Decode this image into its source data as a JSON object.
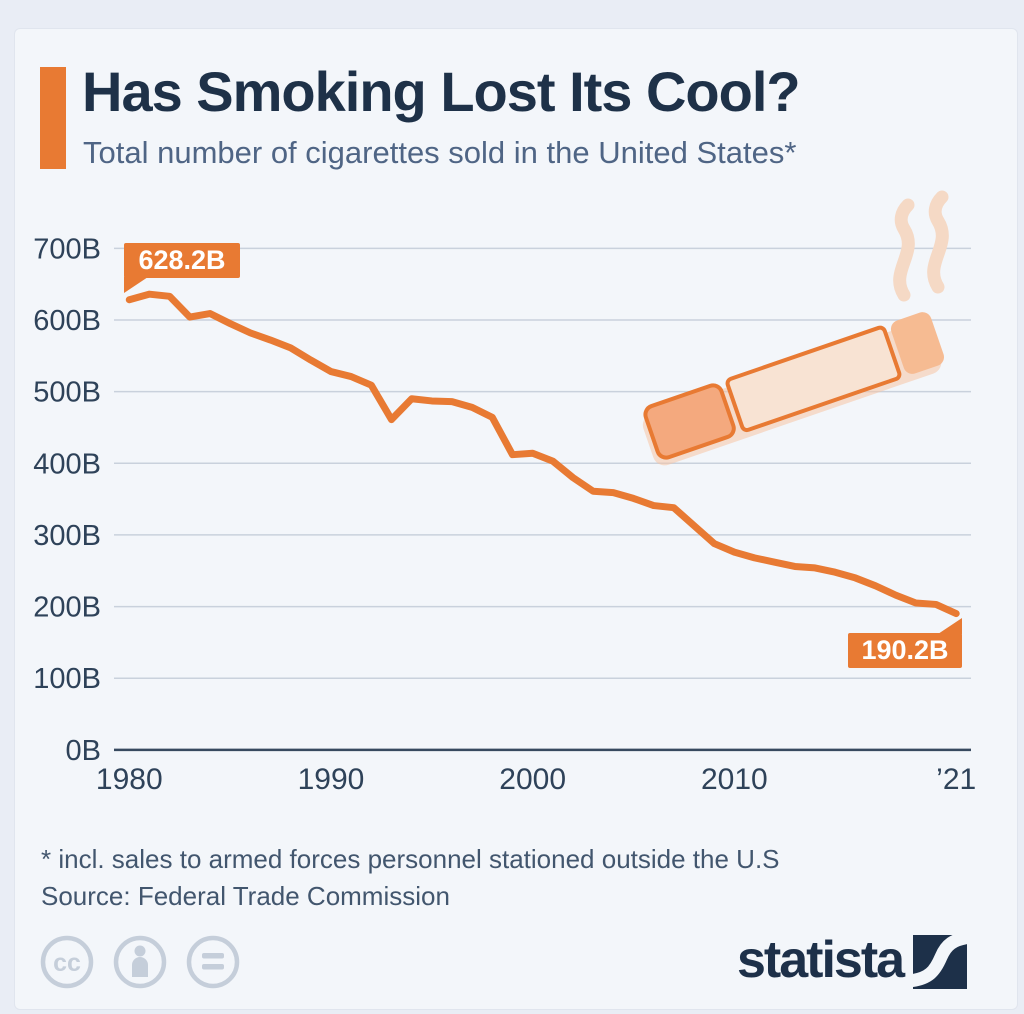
{
  "header": {
    "title": "Has Smoking Lost Its Cool?",
    "subtitle": "Total number of cigarettes sold in the United States*"
  },
  "chart_data": {
    "type": "line",
    "series_name": "Cigarettes sold in the United States (billions)",
    "x": [
      1980,
      1981,
      1982,
      1983,
      1984,
      1985,
      1986,
      1987,
      1988,
      1989,
      1990,
      1991,
      1992,
      1993,
      1994,
      1995,
      1996,
      1997,
      1998,
      1999,
      2000,
      2001,
      2002,
      2003,
      2004,
      2005,
      2006,
      2007,
      2008,
      2009,
      2010,
      2011,
      2012,
      2013,
      2014,
      2015,
      2016,
      2017,
      2018,
      2019,
      2020,
      2021
    ],
    "values": [
      628.2,
      636,
      633,
      604,
      609,
      595,
      582,
      572,
      561,
      544,
      528,
      521,
      509,
      461,
      490,
      487,
      486,
      478,
      464,
      412,
      414,
      403,
      380,
      361,
      359,
      351,
      341,
      338,
      313,
      288,
      276,
      268,
      262,
      256,
      254,
      248,
      240,
      229,
      216,
      205,
      203,
      190.2
    ],
    "unit": "billion cigarettes",
    "ylim": [
      0,
      700
    ],
    "yticks": [
      0,
      100,
      200,
      300,
      400,
      500,
      600,
      700
    ],
    "ytick_labels": [
      "0B",
      "100B",
      "200B",
      "300B",
      "400B",
      "500B",
      "600B",
      "700B"
    ],
    "xticks": [
      1980,
      1990,
      2000,
      2010,
      2021
    ],
    "xtick_labels": [
      "1980",
      "1990",
      "2000",
      "2010",
      "’21"
    ],
    "grid": true,
    "legend": "none",
    "annotations": {
      "start_label": "628.2B",
      "end_label": "190.2B"
    }
  },
  "footnote": {
    "line1": "* incl. sales to armed forces personnel stationed outside the U.S",
    "line2": "Source: Federal Trade Commission"
  },
  "footer": {
    "logo_text": "statista",
    "license_icons": [
      "cc-icon",
      "attribution-icon",
      "no-derivatives-icon"
    ]
  },
  "colors": {
    "orange": "#E87A33",
    "ink": "#1E3148",
    "subtitle": "#4F6585",
    "tick": "#2E4259",
    "grid": "#C9D1DC",
    "axis": "#37495F",
    "footnote": "#42566E",
    "muted": "#C5CEDA",
    "navy": "#1D3049",
    "bg-outer": "#E9EDF5",
    "bg-card": "#F3F6FA",
    "border": "#E0E5EE",
    "cig-filter": "#F4A97E",
    "cig-body": "#F8E3D3",
    "cig-tip": "#F6BB92",
    "smoke": "#F5D9C5",
    "shadow": "#F5C4A4"
  }
}
